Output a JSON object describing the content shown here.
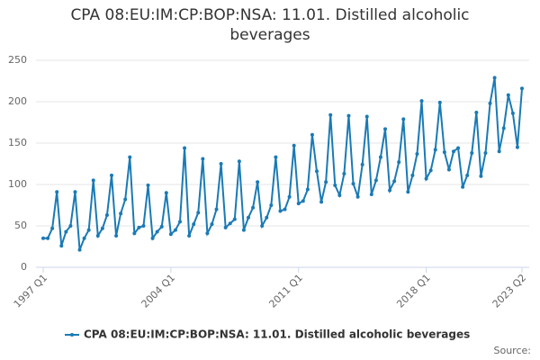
{
  "chart_data": {
    "type": "line",
    "title": "CPA 08:EU:IM:CP:BOP:NSA: 11.01. Distilled alcoholic beverages",
    "categories": [
      "1997 Q1",
      null,
      null,
      null,
      null,
      null,
      null,
      null,
      null,
      null,
      null,
      null,
      null,
      null,
      null,
      null,
      null,
      null,
      null,
      null,
      null,
      null,
      null,
      null,
      null,
      null,
      null,
      null,
      "2004 Q1",
      null,
      null,
      null,
      null,
      null,
      null,
      null,
      null,
      null,
      null,
      null,
      null,
      null,
      null,
      null,
      null,
      null,
      null,
      null,
      null,
      null,
      null,
      null,
      null,
      null,
      null,
      null,
      "2011 Q1",
      null,
      null,
      null,
      null,
      null,
      null,
      null,
      null,
      null,
      null,
      null,
      null,
      null,
      null,
      null,
      null,
      null,
      null,
      null,
      null,
      null,
      null,
      null,
      null,
      null,
      null,
      null,
      "2018 Q1",
      null,
      null,
      null,
      null,
      null,
      null,
      null,
      null,
      null,
      null,
      null,
      null,
      null,
      null,
      null,
      null,
      null,
      null,
      null,
      null,
      "2023 Q2"
    ],
    "series": [
      {
        "name": "CPA 08:EU:IM:CP:BOP:NSA: 11.01. Distilled alcoholic beverages",
        "color": "#1a7ab5",
        "values": [
          35,
          35,
          47,
          91,
          26,
          43,
          50,
          91,
          21,
          35,
          45,
          105,
          38,
          47,
          63,
          111,
          38,
          65,
          82,
          133,
          41,
          48,
          50,
          99,
          35,
          43,
          49,
          90,
          40,
          45,
          55,
          144,
          38,
          52,
          66,
          131,
          41,
          52,
          70,
          125,
          48,
          53,
          58,
          128,
          45,
          60,
          72,
          103,
          50,
          60,
          75,
          133,
          68,
          70,
          85,
          147,
          77,
          80,
          94,
          160,
          116,
          79,
          103,
          184,
          99,
          87,
          113,
          183,
          101,
          85,
          124,
          182,
          88,
          105,
          133,
          167,
          93,
          104,
          127,
          179,
          91,
          111,
          137,
          201,
          107,
          117,
          142,
          199,
          139,
          118,
          140,
          144,
          97,
          111,
          138,
          187,
          110,
          138,
          198,
          229,
          140,
          168,
          208,
          186,
          145,
          216
        ]
      }
    ],
    "ylim": [
      0,
      250
    ],
    "yticks": [
      0,
      50,
      100,
      150,
      200,
      250
    ],
    "grid": true,
    "legend": "bottom",
    "source": "Source:"
  }
}
